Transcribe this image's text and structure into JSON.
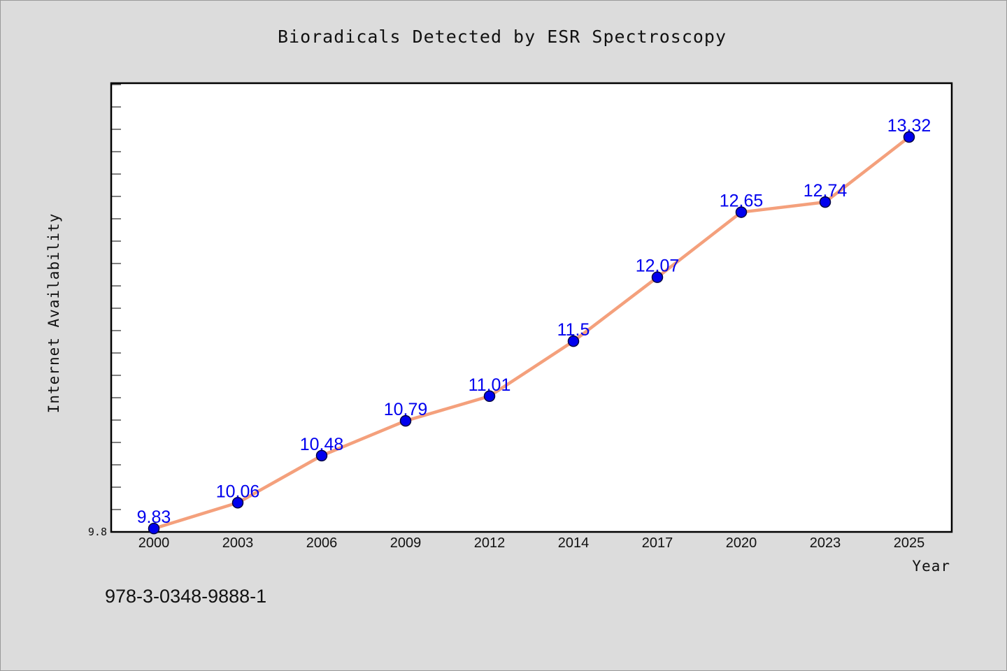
{
  "chart_data": {
    "type": "line",
    "title": "Bioradicals Detected by ESR Spectroscopy",
    "xlabel": "Year",
    "ylabel": "Internet Availability",
    "categories": [
      "2000",
      "2003",
      "2006",
      "2009",
      "2012",
      "2014",
      "2017",
      "2020",
      "2023",
      "2025"
    ],
    "values": [
      9.83,
      10.06,
      10.48,
      10.79,
      11.01,
      11.5,
      12.07,
      12.65,
      12.74,
      13.32
    ],
    "data_labels": [
      "9.83",
      "10.06",
      "10.48",
      "10.79",
      "11.01",
      "11.5",
      "12.07",
      "12.65",
      "12.74",
      "13.32"
    ],
    "y_tick_labels": [
      "9.8"
    ],
    "ylim": [
      9.8,
      13.8
    ],
    "grid": false,
    "colors": {
      "line": "#f4a07c",
      "marker": "#0000ee",
      "marker_edge": "#000040",
      "data_label": "#0000ee",
      "plot_bg": "#ffffff",
      "page_bg": "#dcdcdc"
    }
  },
  "footer_text": "978-3-0348-9888-1"
}
